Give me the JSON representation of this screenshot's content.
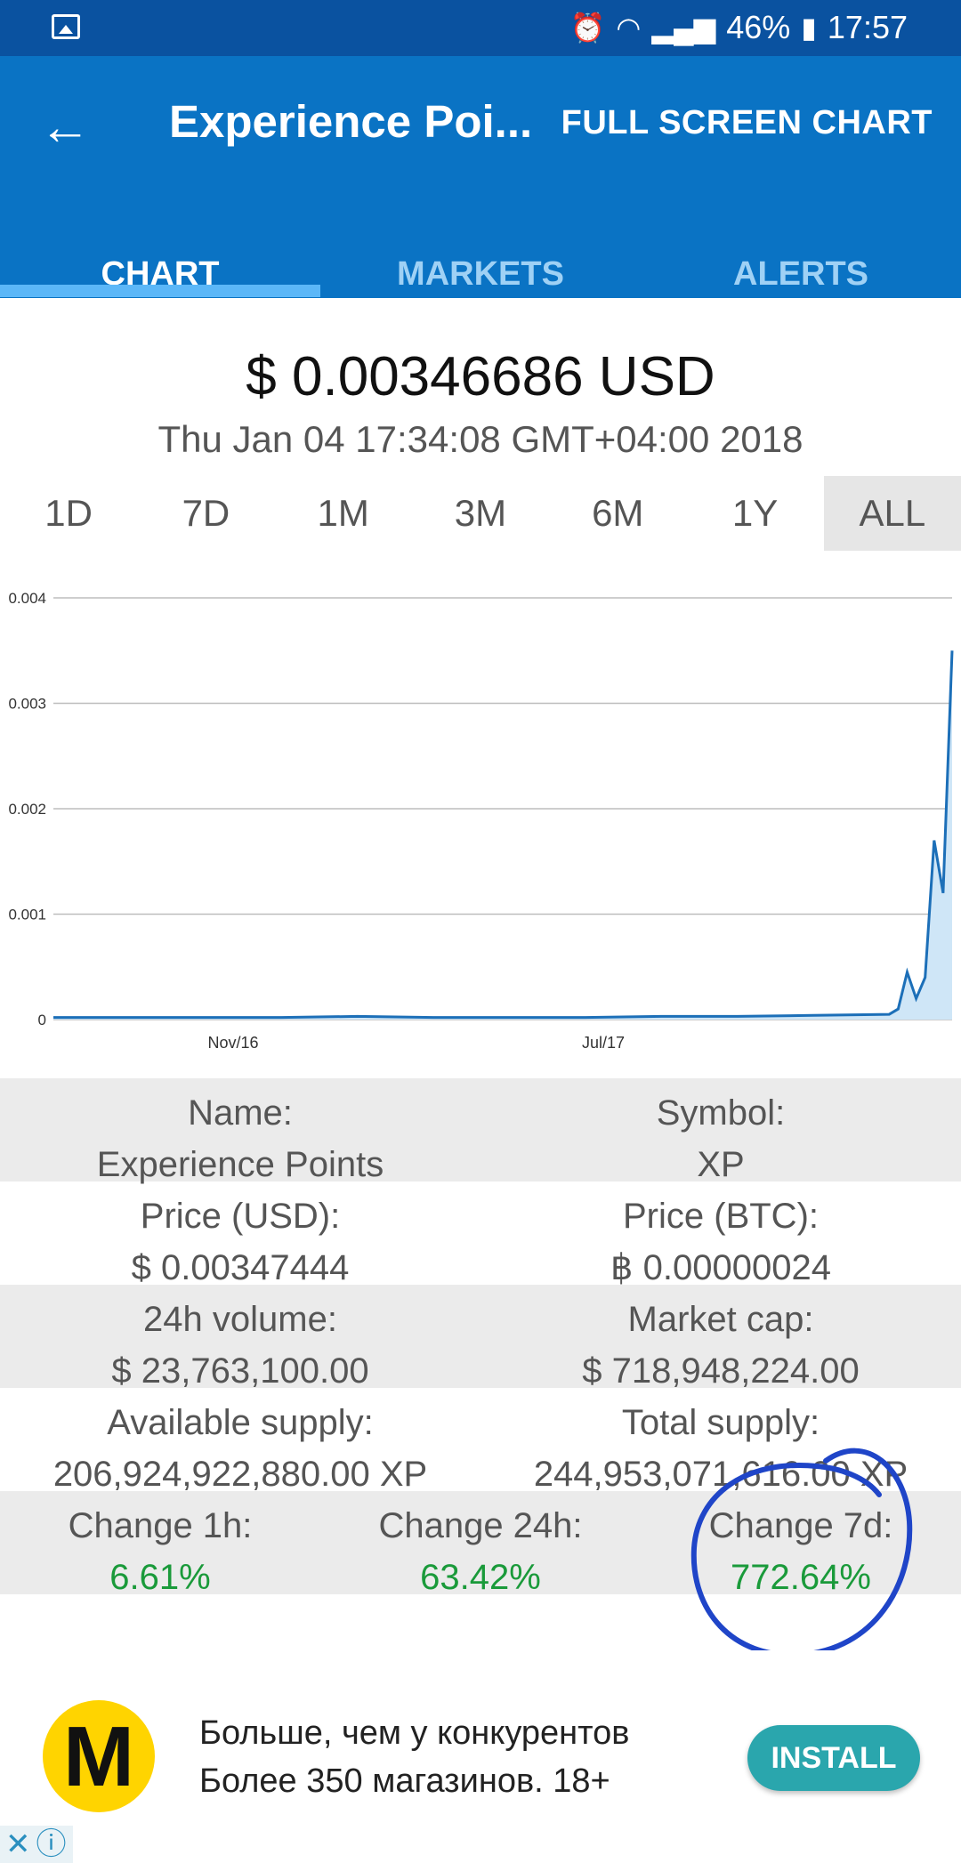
{
  "status_bar": {
    "battery": "46%",
    "time": "17:57"
  },
  "app_bar": {
    "title": "Experience Poi...",
    "action": "FULL SCREEN CHART"
  },
  "tabs": [
    {
      "label": "CHART"
    },
    {
      "label": "MARKETS"
    },
    {
      "label": "ALERTS"
    }
  ],
  "price_header": {
    "price": "$ 0.00346686 USD",
    "timestamp": "Thu Jan 04 17:34:08 GMT+04:00 2018"
  },
  "ranges": [
    {
      "label": "1D"
    },
    {
      "label": "7D"
    },
    {
      "label": "1M"
    },
    {
      "label": "3M"
    },
    {
      "label": "6M"
    },
    {
      "label": "1Y"
    },
    {
      "label": "ALL"
    }
  ],
  "selected_range": "ALL",
  "chart_data": {
    "type": "area",
    "ylim": [
      0,
      0.004
    ],
    "yticks": [
      "0",
      "0.001",
      "0.002",
      "0.003",
      "0.004"
    ],
    "xticks": [
      "Nov/16",
      "Jul/17"
    ],
    "grid": true,
    "series": [
      {
        "values": [
          2e-05,
          2e-05,
          2e-05,
          2e-05,
          3e-05,
          2e-05,
          2e-05,
          2e-05,
          3e-05,
          3e-05,
          4e-05,
          5e-05,
          0.0001,
          0.00045,
          0.0002,
          0.0004,
          0.0017,
          0.0012,
          0.0035
        ]
      }
    ]
  },
  "info": {
    "name_label": "Name:",
    "name_value": "Experience Points",
    "symbol_label": "Symbol:",
    "symbol_value": "XP",
    "price_usd_label": "Price (USD):",
    "price_usd_value": "$ 0.00347444",
    "price_btc_label": "Price (BTC):",
    "price_btc_value": "฿ 0.00000024",
    "volume_label": "24h volume:",
    "volume_value": "$ 23,763,100.00",
    "mcap_label": "Market cap:",
    "mcap_value": "$ 718,948,224.00",
    "avail_label": "Available supply:",
    "avail_value": "206,924,922,880.00 XP",
    "total_label": "Total supply:",
    "total_value": "244,953,071,616.00 XP",
    "ch1h_label": "Change 1h:",
    "ch1h_value": "6.61%",
    "ch24h_label": "Change 24h:",
    "ch24h_value": "63.42%",
    "ch7d_label": "Change 7d:",
    "ch7d_value": "772.64%"
  },
  "ad": {
    "logo_letter": "M",
    "line1": "Больше, чем у конкурентов",
    "line2": "Более 350 магазинов. 18+",
    "install": "INSTALL"
  },
  "colors": {
    "app_bar": "#0a73c4",
    "status_bar": "#0a52a0",
    "accent": "#5bb7f8",
    "positive": "#1a9a3a",
    "annotation": "#1f45c8"
  }
}
